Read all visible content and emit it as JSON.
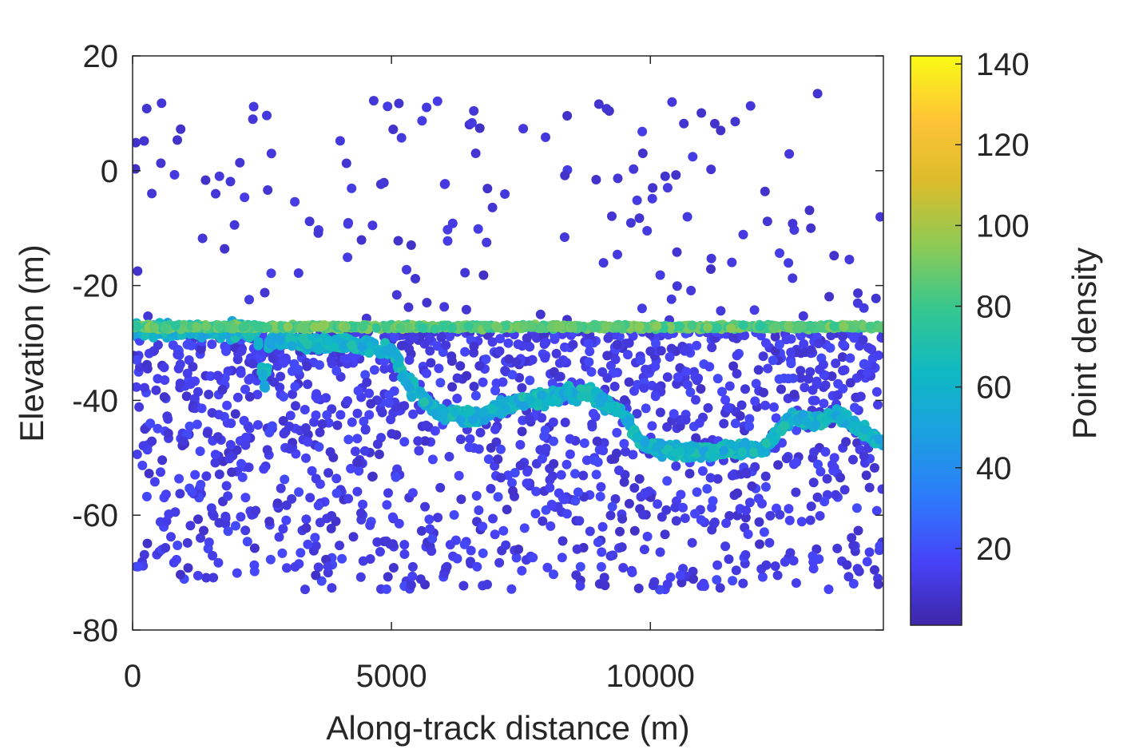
{
  "chart_data": {
    "type": "scatter",
    "title": "",
    "xlabel": "Along-track distance (m)",
    "ylabel": "Elevation (m)",
    "xlim": [
      0,
      14500
    ],
    "ylim": [
      -80,
      20
    ],
    "xticks": [
      0,
      5000,
      10000
    ],
    "yticks": [
      -80,
      -60,
      -40,
      -20,
      0,
      20
    ],
    "grid": false,
    "colorbar": {
      "label": "Point density",
      "range": [
        1,
        142
      ],
      "ticks": [
        20,
        40,
        60,
        80,
        100,
        120,
        140
      ],
      "colormap": "parula",
      "colormap_stops": [
        "#3e26a8",
        "#4743f8",
        "#2d7afb",
        "#1c9fe1",
        "#0fb9c3",
        "#36c78f",
        "#8dca55",
        "#dbbc2b",
        "#fec436",
        "#f9fb15"
      ]
    },
    "x_count_note": "",
    "ground_surface_profile": {
      "x": [
        0,
        2400,
        2550,
        2650,
        4700,
        5050,
        5300,
        5900,
        6600,
        7500,
        8800,
        9400,
        9900,
        10600,
        12200,
        12700,
        13200,
        13600,
        14500
      ],
      "y": [
        -27.8,
        -27.8,
        -38,
        -29.5,
        -30.5,
        -31.5,
        -37,
        -42,
        -43,
        -40,
        -38.5,
        -42,
        -48,
        -49,
        -48.5,
        -43,
        -43.5,
        -42.5,
        -47.5
      ],
      "density": 60
    },
    "water_surface_profile": {
      "x": [
        0,
        14500
      ],
      "y": [
        -27.2,
        -27.2
      ],
      "density": 85
    },
    "noise_points": {
      "above_surface": {
        "y_range": [
          -26,
          14
        ],
        "density": 10
      },
      "below_surface": {
        "y_range": [
          -73,
          -28
        ],
        "density": 12
      }
    }
  }
}
